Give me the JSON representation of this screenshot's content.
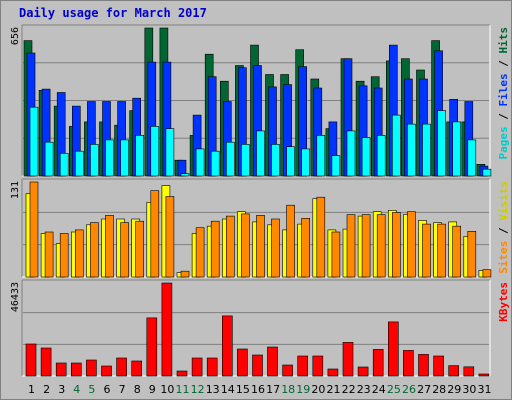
{
  "chart_data": [
    {
      "type": "bar",
      "title": "Daily usage for March 2017",
      "ymax_label": "656",
      "legend": [
        "Pages",
        "Files",
        "Hits"
      ],
      "legend_separator": " / ",
      "categories": [
        "1",
        "2",
        "3",
        "4",
        "5",
        "6",
        "7",
        "8",
        "9",
        "10",
        "11",
        "12",
        "13",
        "14",
        "15",
        "16",
        "17",
        "18",
        "19",
        "20",
        "21",
        "22",
        "23",
        "24",
        "25",
        "26",
        "27",
        "28",
        "29",
        "30",
        "31"
      ],
      "weekend_days": [
        "4",
        "5",
        "11",
        "12",
        "18",
        "19",
        "25",
        "26"
      ],
      "series": [
        {
          "name": "Hits",
          "color": "#006633",
          "values": [
            600,
            380,
            310,
            220,
            240,
            240,
            225,
            290,
            656,
            656,
            70,
            180,
            540,
            420,
            490,
            580,
            450,
            450,
            560,
            430,
            210,
            520,
            420,
            440,
            510,
            520,
            470,
            600,
            240,
            240,
            52
          ]
        },
        {
          "name": "Files",
          "color": "#0033ff",
          "values": [
            545,
            385,
            370,
            310,
            330,
            330,
            330,
            345,
            505,
            505,
            70,
            270,
            440,
            330,
            480,
            490,
            395,
            405,
            485,
            390,
            240,
            520,
            400,
            390,
            580,
            430,
            430,
            555,
            340,
            330,
            44
          ]
        },
        {
          "name": "Pages",
          "color": "#00ffff",
          "values": [
            305,
            150,
            100,
            110,
            140,
            160,
            160,
            180,
            220,
            210,
            10,
            120,
            110,
            150,
            140,
            200,
            140,
            130,
            120,
            180,
            90,
            200,
            170,
            180,
            270,
            230,
            230,
            290,
            240,
            160,
            30
          ]
        }
      ],
      "bar_colors": {
        "Hits": "#006633",
        "Files": "#0033ff",
        "Pages": "#00ffff"
      }
    },
    {
      "type": "bar",
      "ymax_label": "131",
      "legend": [
        "Sites",
        "Visits"
      ],
      "legend_separator": " / ",
      "series": [
        {
          "name": "Visits",
          "color": "#ffff00",
          "values": [
            115,
            60,
            46,
            62,
            72,
            80,
            80,
            80,
            103,
            126,
            6,
            60,
            70,
            80,
            90,
            76,
            72,
            65,
            73,
            108,
            65,
            66,
            84,
            90,
            92,
            86,
            78,
            75,
            76,
            56,
            9
          ]
        },
        {
          "name": "Sites",
          "color": "#ff8800",
          "values": [
            131,
            62,
            60,
            65,
            75,
            85,
            75,
            77,
            119,
            111,
            8,
            68,
            77,
            84,
            87,
            85,
            80,
            99,
            81,
            110,
            62,
            86,
            86,
            86,
            89,
            90,
            73,
            73,
            70,
            63,
            10
          ]
        }
      ]
    },
    {
      "type": "bar",
      "ymax_label": "46433",
      "legend": [
        "KBytes"
      ],
      "series": [
        {
          "name": "KBytes",
          "color": "#ff0000",
          "values": [
            16000,
            14000,
            6500,
            6500,
            8000,
            5000,
            9000,
            7500,
            29000,
            46433,
            2500,
            9000,
            9000,
            30000,
            13500,
            10500,
            14500,
            5500,
            10000,
            10000,
            3500,
            16800,
            4500,
            13300,
            27000,
            12800,
            10800,
            10000,
            5200,
            4600,
            1000
          ]
        }
      ]
    }
  ]
}
